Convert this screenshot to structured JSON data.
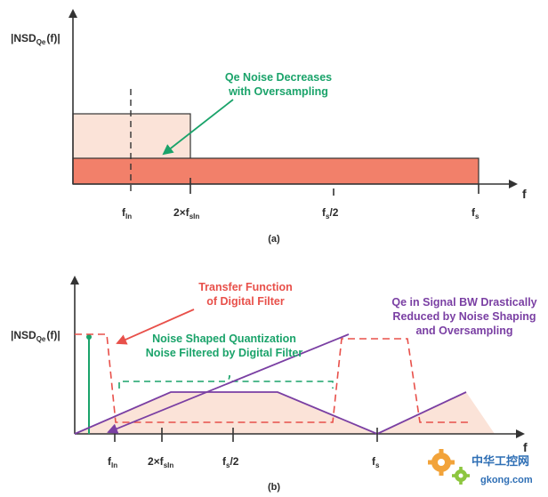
{
  "panel_a": {
    "y_label": "|NSD",
    "y_label_sub": "Qe",
    "y_label_tail": "(f)|",
    "x_label": "f",
    "tick_fin": "f",
    "tick_fin_sub": "In",
    "tick_2fsin": "2×f",
    "tick_2fsin_sub": "sIn",
    "tick_fs2": "f",
    "tick_fs2_sub": "s",
    "tick_fs2_tail": "/2",
    "tick_fs": "f",
    "tick_fs_sub": "s",
    "note_line1": "Qe Noise Decreases",
    "note_line2": "with Oversampling",
    "caption": "(a)"
  },
  "panel_b": {
    "y_label": "|NSD",
    "y_label_sub": "Qe",
    "y_label_tail": "(f)|",
    "x_label": "f",
    "tick_fin": "f",
    "tick_fin_sub": "In",
    "tick_2fsin": "2×f",
    "tick_2fsin_sub": "sIn",
    "tick_fs2": "f",
    "tick_fs2_sub": "s",
    "tick_fs2_tail": "/2",
    "tick_fs": "f",
    "tick_fs_sub": "s",
    "filter_line1": "Transfer Function",
    "filter_line2": "of Digital Filter",
    "shaped_line1": "Noise Shaped Quantization",
    "shaped_line2": "Noise Filtered by Digital Filter",
    "qe_line1": "Qe in Signal BW Drastically",
    "qe_line2": "Reduced by Noise Shaping",
    "qe_line3": "and Oversampling",
    "caption": "(b)"
  },
  "watermark": {
    "text_cn": "中华工控网",
    "text_url": "gkong.com"
  },
  "colors": {
    "axis": "#333333",
    "green": "#1aa36a",
    "red": "#e8504a",
    "purple": "#7a3fa3",
    "light_fill": "#fbe3d8",
    "strong_fill": "#f2806a"
  }
}
